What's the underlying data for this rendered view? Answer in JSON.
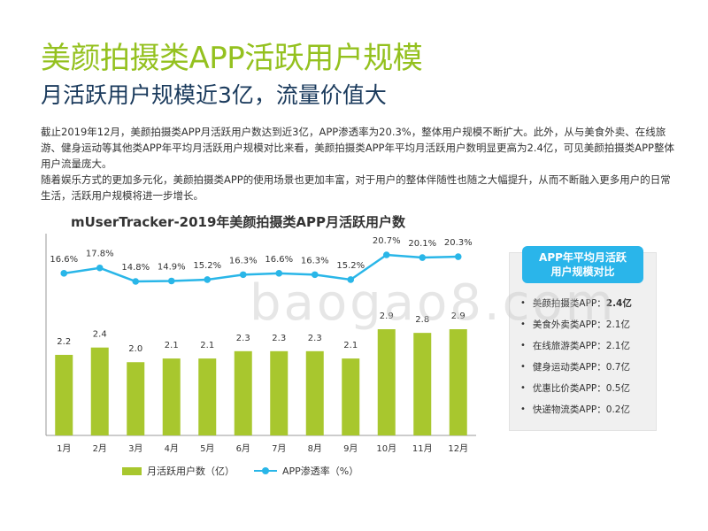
{
  "page": {
    "title": "美颜拍摄类APP活跃用户规模",
    "subtitle": "月活跃用户规模近3亿，流量价值大",
    "paragraph1": "截止2019年12月，美颜拍摄类APP月活跃用户数达到近3亿，APP渗透率为20.3%，整体用户规模不断扩大。此外，从与美食外卖、在线旅游、健身运动等其他类APP年平均月活跃用户规模对比来看，美颜拍摄类APP年平均月活跃用户数明显更高为2.4亿，可见美颜拍摄类APP整体用户流量庞大。",
    "paragraph2": "随着娱乐方式的更加多元化，美颜拍摄类APP的使用场景也更加丰富，对于用户的整体伴随性也随之大幅提升，从而不断融入更多用户的日常生活，活跃用户规模将进一步增长。",
    "watermark": "baogao8.com"
  },
  "chart_data": {
    "type": "bar",
    "title": "mUserTracker-2019年美颜拍摄类APP月活跃用户数",
    "categories": [
      "1月",
      "2月",
      "3月",
      "4月",
      "5月",
      "6月",
      "7月",
      "8月",
      "9月",
      "10月",
      "11月",
      "12月"
    ],
    "series": [
      {
        "name": "月活跃用户数（亿）",
        "type": "bar",
        "values": [
          2.2,
          2.4,
          2.0,
          2.1,
          2.1,
          2.3,
          2.3,
          2.3,
          2.1,
          2.9,
          2.8,
          2.9
        ],
        "labels": [
          "2.2",
          "2.4",
          "2.0",
          "2.1",
          "2.1",
          "2.3",
          "2.3",
          "2.3",
          "2.1",
          "2.9",
          "2.8",
          "2.9"
        ],
        "color": "#a8c72e"
      },
      {
        "name": "APP渗透率（%）",
        "type": "line",
        "values": [
          16.6,
          17.8,
          14.8,
          14.9,
          15.2,
          16.3,
          16.6,
          16.3,
          15.2,
          20.7,
          20.1,
          20.3
        ],
        "labels": [
          "16.6%",
          "17.8%",
          "14.8%",
          "14.9%",
          "15.2%",
          "16.3%",
          "16.6%",
          "16.3%",
          "15.2%",
          "20.7%",
          "20.1%",
          "20.3%"
        ],
        "color": "#29b6e8"
      }
    ],
    "bar_ylim": [
      0,
      3.2
    ],
    "line_ylim": [
      0,
      25
    ],
    "grid": false,
    "legend_position": "bottom"
  },
  "side_panel": {
    "title_line1": "APP年平均月活跃",
    "title_line2": "用户规模对比",
    "items": [
      {
        "label": "美颜拍摄类APP：",
        "value": "2.4亿",
        "highlight": true
      },
      {
        "label": "美食外卖类APP：",
        "value": "2.1亿",
        "highlight": false
      },
      {
        "label": "在线旅游类APP：",
        "value": "2.1亿",
        "highlight": false
      },
      {
        "label": "健身运动类APP：",
        "value": "0.7亿",
        "highlight": false
      },
      {
        "label": "优惠比价类APP：",
        "value": "0.5亿",
        "highlight": false
      },
      {
        "label": "快递物流类APP：",
        "value": "0.2亿",
        "highlight": false
      }
    ],
    "bullet": "•"
  }
}
